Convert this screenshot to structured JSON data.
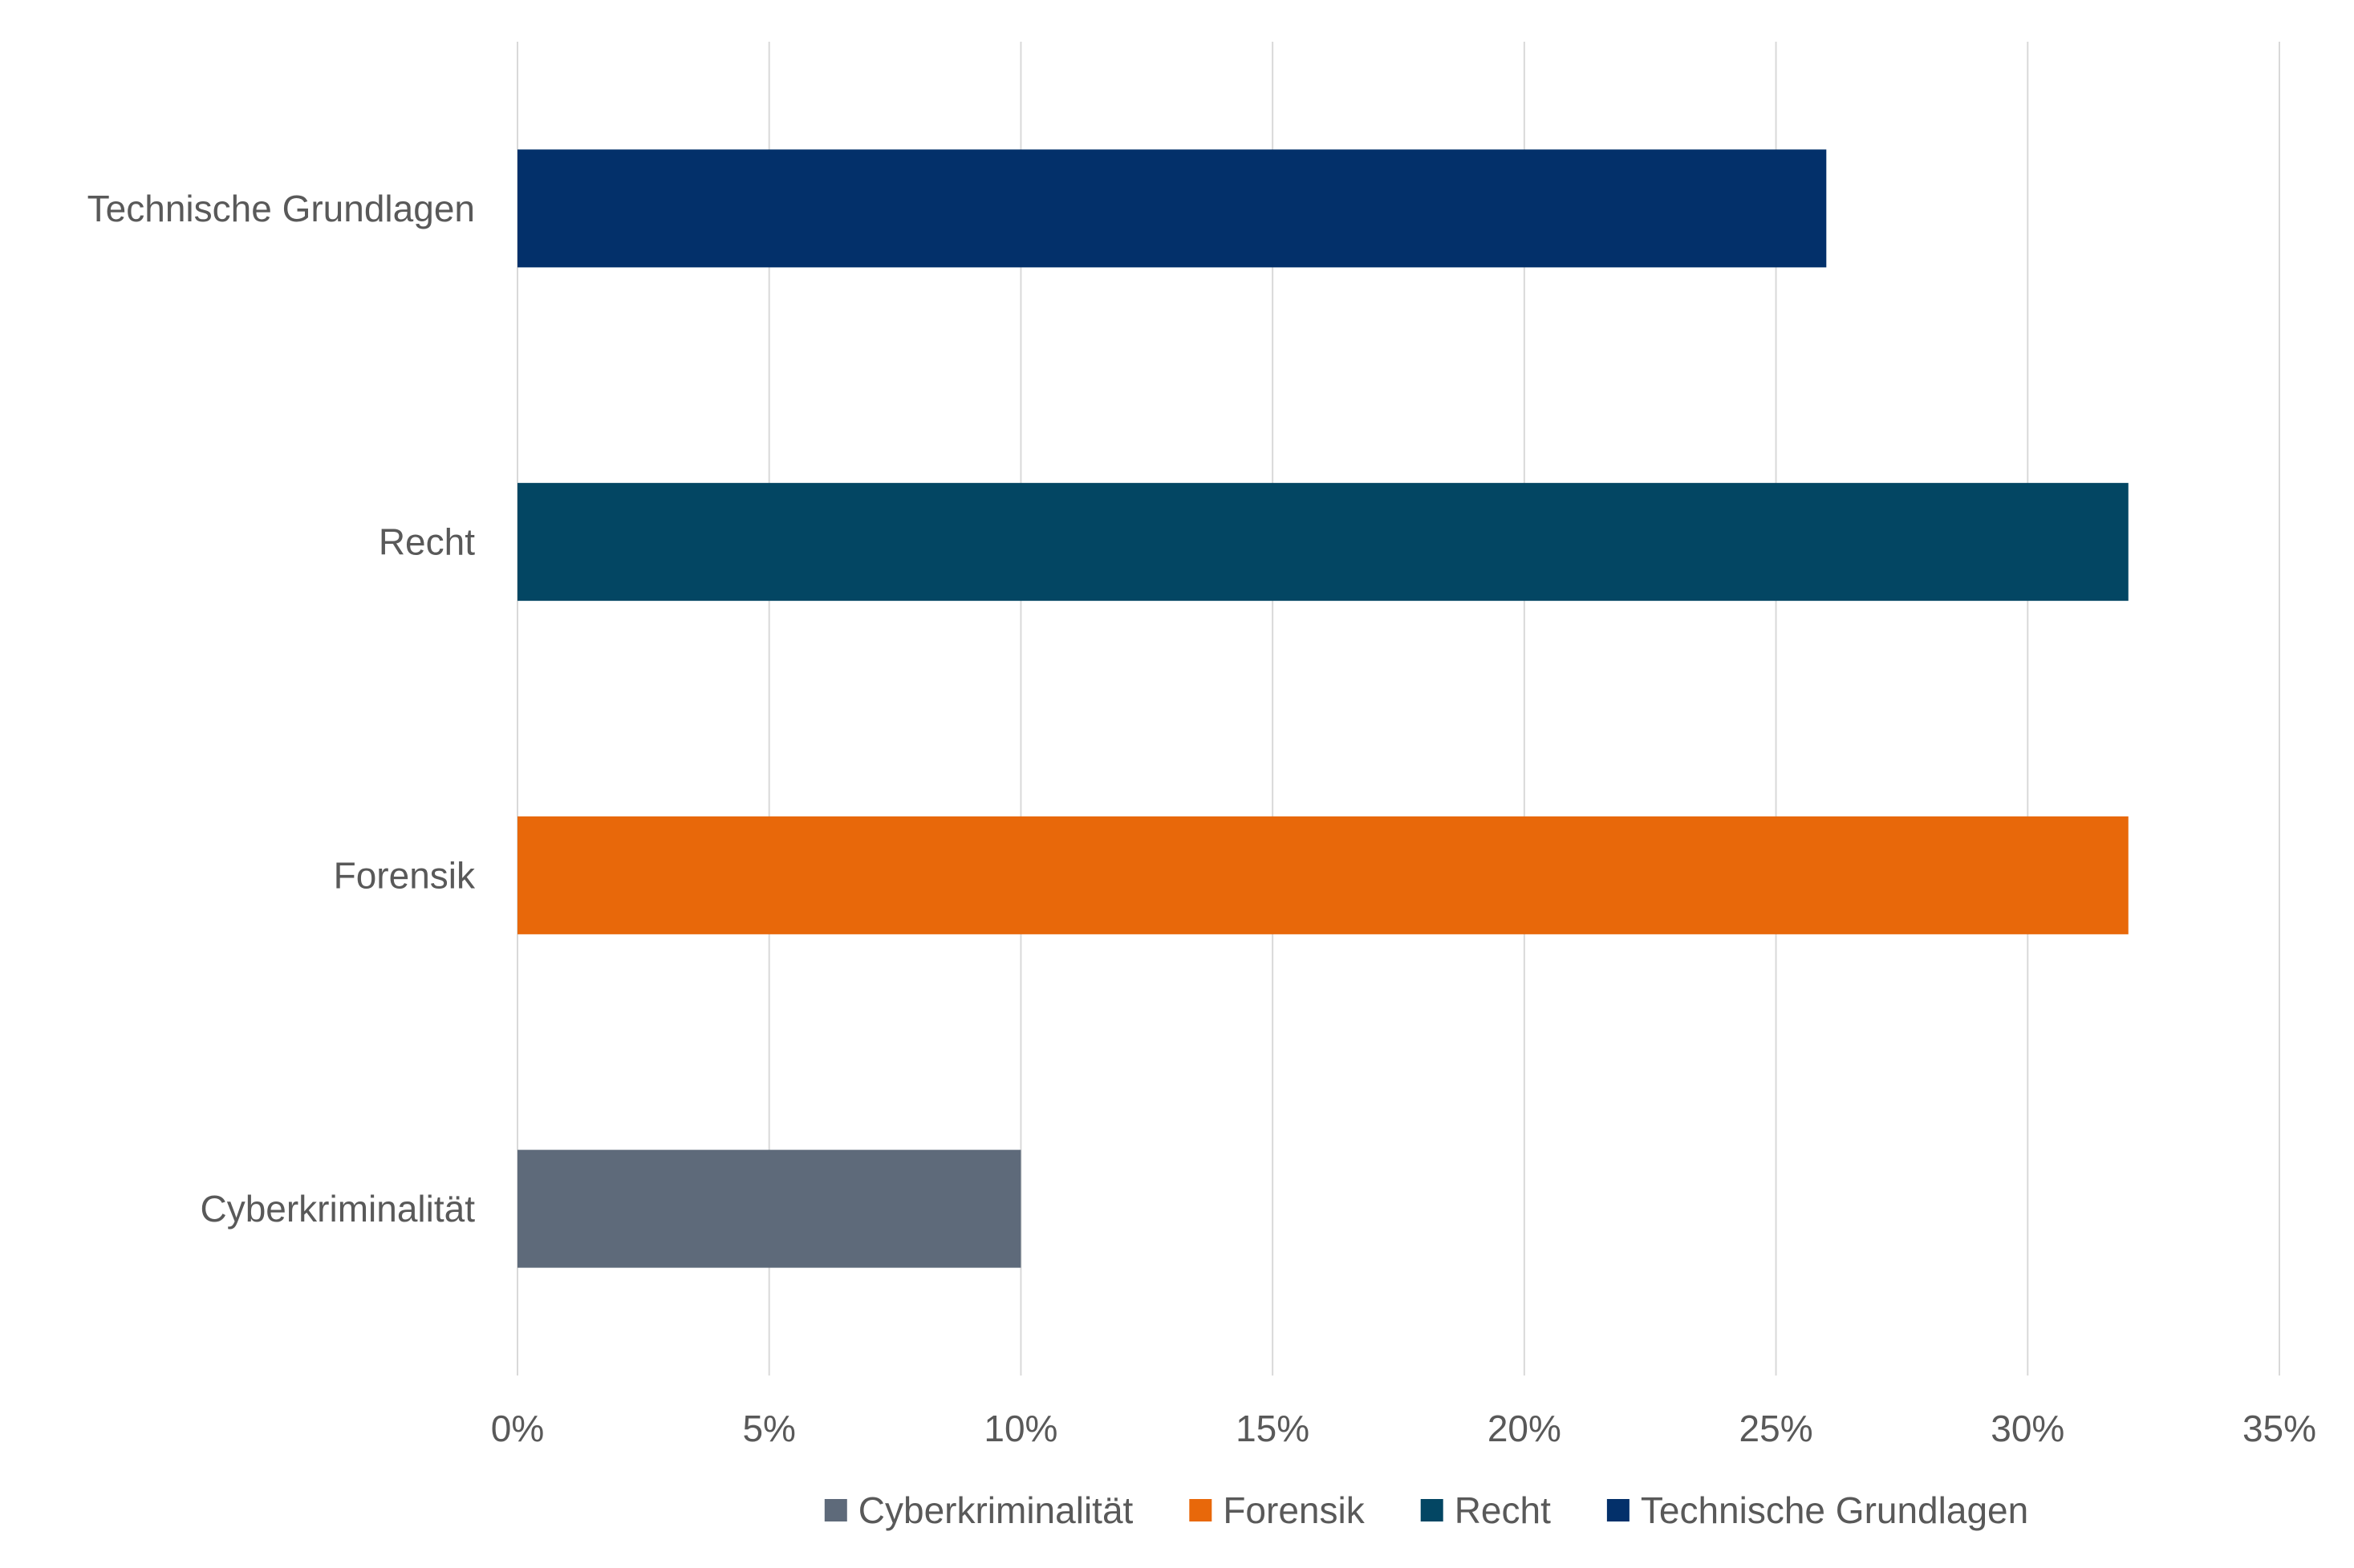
{
  "chart_data": {
    "type": "bar",
    "orientation": "horizontal",
    "title": "",
    "xlabel": "",
    "ylabel": "",
    "categories": [
      "Cyberkriminalität",
      "Forensik",
      "Recht",
      "Technische Grundlagen"
    ],
    "values": [
      10,
      32,
      32,
      26
    ],
    "colors": [
      "#5e6a7a",
      "#e8680a",
      "#034663",
      "#03306a"
    ],
    "xlim": [
      0,
      35
    ],
    "xticks": [
      0,
      5,
      10,
      15,
      20,
      25,
      30,
      35
    ],
    "xtick_labels": [
      "0%",
      "5%",
      "10%",
      "15%",
      "20%",
      "25%",
      "30%",
      "35%"
    ],
    "value_unit": "%",
    "grid": "vertical",
    "legend_position": "bottom",
    "legend": [
      {
        "label": "Cyberkriminalität",
        "color": "#5e6a7a"
      },
      {
        "label": "Forensik",
        "color": "#e8680a"
      },
      {
        "label": "Recht",
        "color": "#034663"
      },
      {
        "label": "Technische Grundlagen",
        "color": "#03306a"
      }
    ]
  }
}
